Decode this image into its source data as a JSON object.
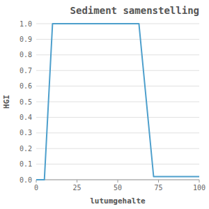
{
  "chart_data": {
    "type": "line",
    "title": "Sediment samenstelling",
    "x_label": "lutumgehalte",
    "y_label": "HGI",
    "x": [
      0,
      5,
      10,
      63,
      72,
      100
    ],
    "values": [
      0.0,
      0.0,
      1.0,
      1.0,
      0.02,
      0.02
    ],
    "color": "#4d9fcc",
    "xlim": [
      0,
      100
    ],
    "ylim": [
      0.0,
      1.0
    ],
    "xticks": [
      0,
      25,
      50,
      75,
      100
    ],
    "yticks": [
      {
        "value": 0.0,
        "label": "0.0"
      },
      0.1,
      0.2,
      0.3,
      0.4,
      0.5,
      0.6,
      0.7,
      0.8,
      0.9,
      {
        "value": 1.0,
        "label": "1.0"
      }
    ],
    "grid": "y"
  }
}
